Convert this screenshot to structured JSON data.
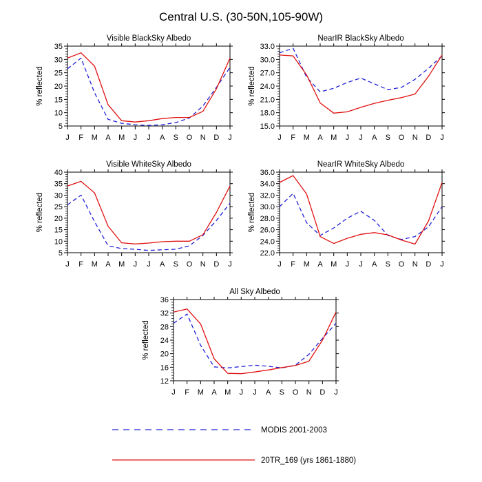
{
  "page_title": "Central U.S. (30-50N,105-90W)",
  "colors": {
    "modis": "#2020d8",
    "model": "#e01010",
    "axis": "#000000"
  },
  "legend": {
    "modis": {
      "label": "MODIS 2001-2003",
      "color": "#2020d8",
      "style": "dashed"
    },
    "model": {
      "label": "20TR_169 (yrs 1861-1880)",
      "color": "#e01010",
      "style": "solid"
    }
  },
  "chart_data": [
    {
      "type": "line",
      "title": "Visible BlackSky Albedo",
      "ylabel": "% reflected",
      "categories": [
        "J",
        "F",
        "M",
        "A",
        "M",
        "J",
        "J",
        "A",
        "S",
        "O",
        "N",
        "D",
        "J"
      ],
      "ylim": [
        5,
        35
      ],
      "yticks": [
        "5",
        "10",
        "15",
        "20",
        "25",
        "30",
        "35"
      ],
      "series": [
        {
          "name": "MODIS 2001-2003",
          "values": [
            26.5,
            30.5,
            17.5,
            7.5,
            6.0,
            5.5,
            5.2,
            5.5,
            6.3,
            8.0,
            12.5,
            19.5,
            27.0
          ]
        },
        {
          "name": "20TR_169 (yrs 1861-1880)",
          "values": [
            30.5,
            32.5,
            27.5,
            13.0,
            7.0,
            6.5,
            7.0,
            7.8,
            8.2,
            8.2,
            10.5,
            19.0,
            30.5
          ]
        }
      ]
    },
    {
      "type": "line",
      "title": "NearIR BlackSky Albedo",
      "ylabel": "% reflected",
      "categories": [
        "J",
        "F",
        "M",
        "A",
        "M",
        "J",
        "J",
        "A",
        "S",
        "O",
        "N",
        "D",
        "J"
      ],
      "ylim": [
        15,
        33
      ],
      "yticks": [
        "15.0",
        "18.0",
        "21.0",
        "24.0",
        "27.0",
        "30.0",
        "33.0"
      ],
      "series": [
        {
          "name": "MODIS 2001-2003",
          "values": [
            31.5,
            32.5,
            26.0,
            22.7,
            23.5,
            24.8,
            25.8,
            24.5,
            23.2,
            23.7,
            25.5,
            28.0,
            30.8
          ]
        },
        {
          "name": "20TR_169 (yrs 1861-1880)",
          "values": [
            31.0,
            30.8,
            26.5,
            20.2,
            17.9,
            18.2,
            19.2,
            20.1,
            20.8,
            21.4,
            22.2,
            26.2,
            31.0
          ]
        }
      ]
    },
    {
      "type": "line",
      "title": "Visible WhiteSky Albedo",
      "ylabel": "% reflected",
      "categories": [
        "J",
        "F",
        "M",
        "A",
        "M",
        "J",
        "J",
        "A",
        "S",
        "O",
        "N",
        "D",
        "J"
      ],
      "ylim": [
        5,
        40
      ],
      "yticks": [
        "5",
        "10",
        "15",
        "20",
        "25",
        "30",
        "35",
        "40"
      ],
      "series": [
        {
          "name": "MODIS 2001-2003",
          "values": [
            25.8,
            30.0,
            18.5,
            8.0,
            6.8,
            6.5,
            6.0,
            6.3,
            6.5,
            8.0,
            12.5,
            19.0,
            26.5
          ]
        },
        {
          "name": "20TR_169 (yrs 1861-1880)",
          "values": [
            34.0,
            36.0,
            31.0,
            16.5,
            9.3,
            8.8,
            9.2,
            9.8,
            10.0,
            10.0,
            12.8,
            22.5,
            34.0
          ]
        }
      ]
    },
    {
      "type": "line",
      "title": "NearIR WhiteSky Albedo",
      "ylabel": "% reflected",
      "categories": [
        "J",
        "F",
        "M",
        "A",
        "M",
        "J",
        "J",
        "A",
        "S",
        "O",
        "N",
        "D",
        "J"
      ],
      "ylim": [
        22,
        36
      ],
      "yticks": [
        "22.0",
        "24.0",
        "26.0",
        "28.0",
        "30.0",
        "32.0",
        "34.0",
        "36.0"
      ],
      "series": [
        {
          "name": "MODIS 2001-2003",
          "values": [
            30.0,
            32.3,
            27.2,
            25.0,
            26.3,
            28.0,
            29.2,
            27.6,
            25.0,
            24.3,
            24.8,
            26.5,
            30.0
          ]
        },
        {
          "name": "20TR_169 (yrs 1861-1880)",
          "values": [
            34.2,
            35.4,
            32.2,
            24.8,
            23.6,
            24.5,
            25.2,
            25.5,
            25.1,
            24.2,
            23.5,
            27.5,
            34.2
          ]
        }
      ]
    },
    {
      "type": "line",
      "title": "All Sky Albedo",
      "ylabel": "% reflected",
      "categories": [
        "J",
        "F",
        "M",
        "A",
        "M",
        "J",
        "J",
        "A",
        "S",
        "O",
        "N",
        "D",
        "J"
      ],
      "ylim": [
        12,
        36
      ],
      "yticks": [
        "12",
        "16",
        "20",
        "24",
        "28",
        "32",
        "36"
      ],
      "series": [
        {
          "name": "MODIS 2001-2003",
          "values": [
            29.0,
            31.7,
            22.5,
            16.1,
            15.8,
            16.2,
            16.6,
            16.3,
            15.8,
            16.6,
            19.8,
            24.5,
            29.0
          ]
        },
        {
          "name": "20TR_169 (yrs 1861-1880)",
          "values": [
            32.3,
            33.2,
            28.8,
            18.5,
            14.2,
            14.1,
            14.6,
            15.2,
            15.9,
            16.5,
            17.8,
            24.0,
            32.3
          ]
        }
      ]
    }
  ]
}
